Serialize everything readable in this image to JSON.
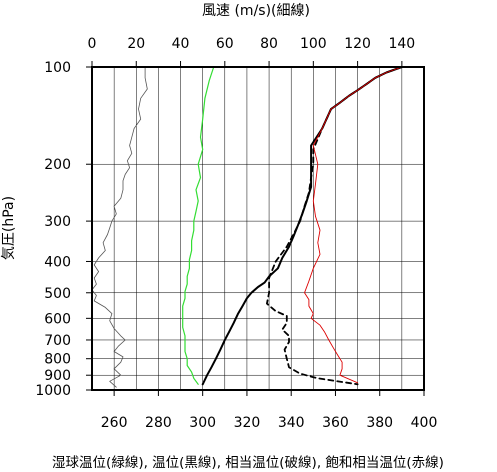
{
  "chart_data": {
    "type": "line",
    "top_axis": {
      "label": "風速 (m/s)(細線)",
      "range": [
        0,
        150
      ],
      "ticks": [
        0,
        20,
        40,
        60,
        80,
        100,
        120,
        140
      ],
      "tick_labels": [
        "0",
        "20",
        "40",
        "60",
        "80",
        "100",
        "120",
        "140"
      ]
    },
    "bottom_axis": {
      "label": "湿球温位(緑線), 温位(黒線), 相当温位(破線), 飽和相当温位(赤線)",
      "range": [
        250,
        400
      ],
      "ticks": [
        260,
        280,
        300,
        320,
        340,
        360,
        380,
        400
      ],
      "tick_labels": [
        "260",
        "280",
        "300",
        "320",
        "340",
        "360",
        "380",
        "400"
      ]
    },
    "y_axis": {
      "label": "気圧(hPa)",
      "scale": "log",
      "range": [
        1000,
        100
      ],
      "ticks": [
        100,
        200,
        300,
        400,
        500,
        600,
        700,
        800,
        900,
        1000
      ],
      "tick_labels": [
        "100",
        "200",
        "300",
        "400",
        "500",
        "600",
        "700",
        "800",
        "900",
        "1000"
      ]
    },
    "grid": true,
    "series": [
      {
        "key": "wind",
        "axis": "top",
        "color": "#555555",
        "dash": false,
        "width": 0.8,
        "points": [
          [
            24,
            100
          ],
          [
            24,
            108
          ],
          [
            25,
            117
          ],
          [
            22,
            125
          ],
          [
            21,
            135
          ],
          [
            22,
            145
          ],
          [
            19,
            155
          ],
          [
            18,
            165
          ],
          [
            17,
            175
          ],
          [
            18,
            185
          ],
          [
            16,
            195
          ],
          [
            17,
            205
          ],
          [
            15,
            215
          ],
          [
            14,
            225
          ],
          [
            14,
            240
          ],
          [
            13,
            255
          ],
          [
            10,
            270
          ],
          [
            11,
            285
          ],
          [
            9,
            300
          ],
          [
            8,
            315
          ],
          [
            7,
            330
          ],
          [
            5,
            350
          ],
          [
            6,
            370
          ],
          [
            3,
            390
          ],
          [
            1,
            410
          ],
          [
            3,
            430
          ],
          [
            1,
            450
          ],
          [
            2,
            470
          ],
          [
            0,
            490
          ],
          [
            2,
            510
          ],
          [
            1,
            530
          ],
          [
            6,
            555
          ],
          [
            9,
            580
          ],
          [
            8,
            610
          ],
          [
            10,
            645
          ],
          [
            13,
            680
          ],
          [
            15,
            700
          ],
          [
            12,
            730
          ],
          [
            10,
            760
          ],
          [
            14,
            790
          ],
          [
            13,
            820
          ],
          [
            10,
            860
          ],
          [
            13,
            900
          ],
          [
            8,
            940
          ],
          [
            11,
            980
          ]
        ]
      },
      {
        "key": "wet_bulb_theta",
        "axis": "bottom",
        "color": "#33dd33",
        "dash": false,
        "width": 1.2,
        "points": [
          [
            305,
            100
          ],
          [
            303,
            110
          ],
          [
            301,
            125
          ],
          [
            300,
            145
          ],
          [
            299,
            165
          ],
          [
            300,
            180
          ],
          [
            298,
            200
          ],
          [
            299,
            220
          ],
          [
            297,
            240
          ],
          [
            298,
            260
          ],
          [
            297,
            280
          ],
          [
            296,
            300
          ],
          [
            296,
            320
          ],
          [
            295,
            345
          ],
          [
            295,
            370
          ],
          [
            294,
            395
          ],
          [
            294,
            420
          ],
          [
            293,
            445
          ],
          [
            293,
            470
          ],
          [
            292,
            495
          ],
          [
            292,
            520
          ],
          [
            291,
            550
          ],
          [
            291,
            580
          ],
          [
            291,
            610
          ],
          [
            291,
            640
          ],
          [
            292,
            680
          ],
          [
            292,
            720
          ],
          [
            292,
            760
          ],
          [
            293,
            800
          ],
          [
            293,
            840
          ],
          [
            295,
            880
          ],
          [
            296,
            920
          ],
          [
            298,
            960
          ]
        ]
      },
      {
        "key": "theta",
        "axis": "bottom",
        "color": "#000000",
        "dash": false,
        "width": 2,
        "points": [
          [
            390,
            100
          ],
          [
            383,
            104
          ],
          [
            378,
            108
          ],
          [
            374,
            113
          ],
          [
            370,
            118
          ],
          [
            366,
            123
          ],
          [
            362,
            129
          ],
          [
            358,
            135
          ],
          [
            354,
            155
          ],
          [
            349,
            175
          ],
          [
            349,
            195
          ],
          [
            349,
            215
          ],
          [
            349,
            235
          ],
          [
            347,
            260
          ],
          [
            345,
            285
          ],
          [
            343,
            310
          ],
          [
            341,
            335
          ],
          [
            339,
            360
          ],
          [
            336,
            390
          ],
          [
            334,
            420
          ],
          [
            330,
            445
          ],
          [
            328,
            465
          ],
          [
            325,
            480
          ],
          [
            322,
            500
          ],
          [
            320,
            520
          ],
          [
            318,
            550
          ],
          [
            316,
            580
          ],
          [
            314,
            620
          ],
          [
            312,
            660
          ],
          [
            310,
            700
          ],
          [
            308,
            750
          ],
          [
            306,
            800
          ],
          [
            304,
            850
          ],
          [
            302,
            900
          ],
          [
            300,
            960
          ]
        ]
      },
      {
        "key": "equiv_theta",
        "axis": "bottom",
        "color": "#000000",
        "dash": true,
        "width": 1.8,
        "points": [
          [
            390,
            100
          ],
          [
            383,
            104
          ],
          [
            378,
            108
          ],
          [
            374,
            113
          ],
          [
            370,
            118
          ],
          [
            366,
            123
          ],
          [
            362,
            129
          ],
          [
            358,
            135
          ],
          [
            354,
            155
          ],
          [
            350,
            180
          ],
          [
            350,
            200
          ],
          [
            349,
            220
          ],
          [
            348,
            245
          ],
          [
            346,
            270
          ],
          [
            344,
            300
          ],
          [
            341,
            330
          ],
          [
            338,
            360
          ],
          [
            333,
            400
          ],
          [
            330,
            450
          ],
          [
            330,
            500
          ],
          [
            329,
            540
          ],
          [
            333,
            570
          ],
          [
            338,
            590
          ],
          [
            338,
            620
          ],
          [
            336,
            650
          ],
          [
            339,
            680
          ],
          [
            339,
            710
          ],
          [
            337,
            750
          ],
          [
            338,
            800
          ],
          [
            339,
            850
          ],
          [
            344,
            890
          ],
          [
            352,
            920
          ],
          [
            370,
            960
          ]
        ]
      },
      {
        "key": "sat_equiv_theta",
        "axis": "bottom",
        "color": "#dd0000",
        "dash": false,
        "width": 0.9,
        "points": [
          [
            390,
            100
          ],
          [
            383,
            104
          ],
          [
            378,
            108
          ],
          [
            374,
            113
          ],
          [
            370,
            118
          ],
          [
            366,
            123
          ],
          [
            362,
            129
          ],
          [
            358,
            135
          ],
          [
            354,
            155
          ],
          [
            350,
            175
          ],
          [
            352,
            200
          ],
          [
            351,
            230
          ],
          [
            350,
            260
          ],
          [
            351,
            290
          ],
          [
            353,
            320
          ],
          [
            352,
            350
          ],
          [
            353,
            380
          ],
          [
            350,
            420
          ],
          [
            348,
            460
          ],
          [
            346,
            500
          ],
          [
            348,
            525
          ],
          [
            348,
            550
          ],
          [
            350,
            580
          ],
          [
            349,
            600
          ],
          [
            353,
            630
          ],
          [
            355,
            660
          ],
          [
            357,
            700
          ],
          [
            359,
            740
          ],
          [
            361,
            780
          ],
          [
            363,
            820
          ],
          [
            363,
            860
          ],
          [
            362,
            900
          ],
          [
            370,
            950
          ]
        ]
      }
    ]
  }
}
